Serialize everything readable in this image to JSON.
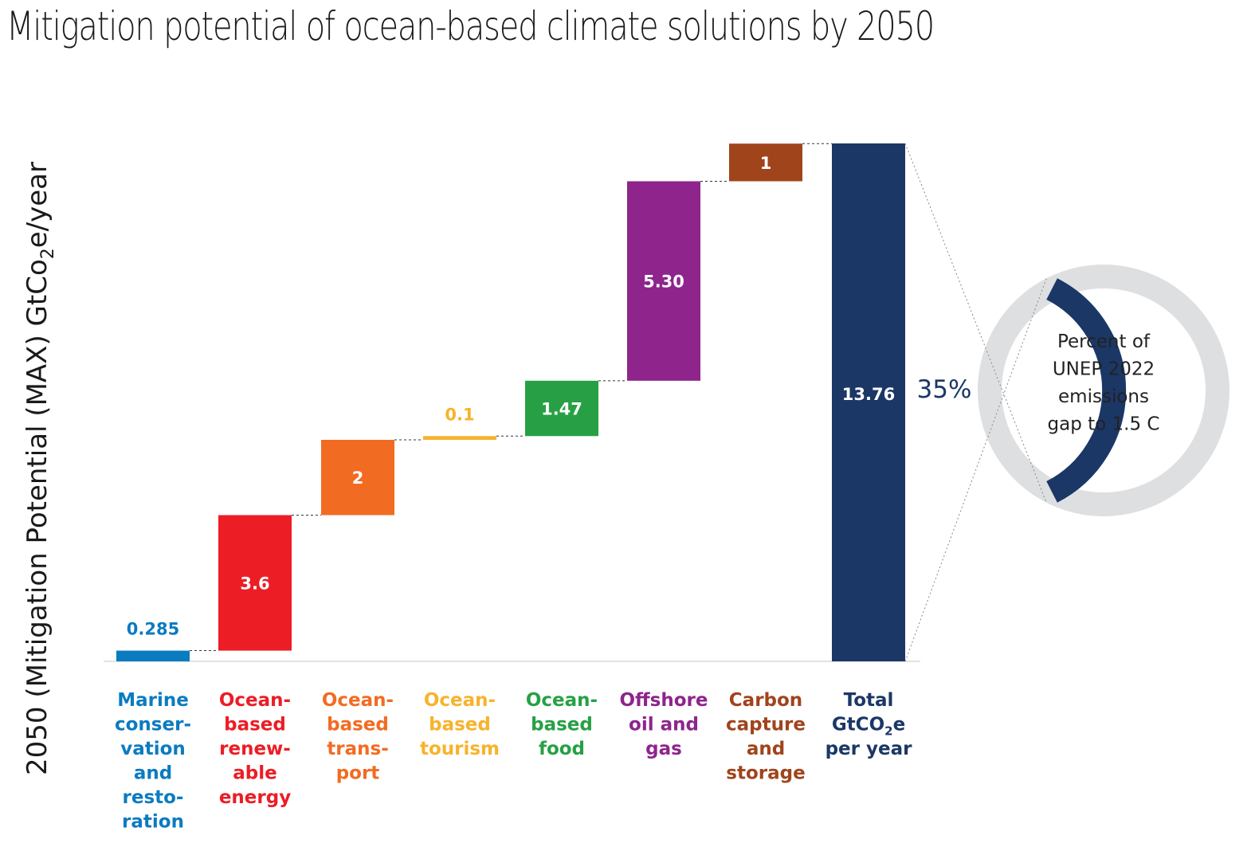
{
  "title": "Mitigation potential of ocean-based climate solutions by 2050",
  "colors": {
    "marine": "#0b7bc1",
    "renewable": "#ec1d25",
    "transport": "#f26b22",
    "tourism": "#f7b32b",
    "food": "#27a045",
    "oilgas": "#8e248c",
    "ccs": "#a0441c",
    "total": "#1b3766",
    "donut_track": "#dedfe1"
  },
  "chart_data": {
    "type": "waterfall",
    "title": "Mitigation potential of ocean-based climate solutions by 2050",
    "ylabel": "2050 (Mitigation Potential (MAX) GtCo2e/year",
    "ylim": [
      0,
      13.76
    ],
    "grid": false,
    "categories": [
      {
        "lines": [
          "Marine",
          "conser-",
          "vation",
          "and",
          "resto-",
          "ration"
        ],
        "value": 0.285,
        "label": "0.285",
        "color_key": "marine"
      },
      {
        "lines": [
          "Ocean-",
          "based",
          "renew-",
          "able",
          "energy"
        ],
        "value": 3.6,
        "label": "3.6",
        "color_key": "renewable"
      },
      {
        "lines": [
          "Ocean-",
          "based",
          "trans-",
          "port"
        ],
        "value": 2,
        "label": "2",
        "color_key": "transport"
      },
      {
        "lines": [
          "Ocean-",
          "based",
          "tourism"
        ],
        "value": 0.1,
        "label": "0.1",
        "color_key": "tourism"
      },
      {
        "lines": [
          "Ocean-",
          "based",
          "food"
        ],
        "value": 1.47,
        "label": "1.47",
        "color_key": "food"
      },
      {
        "lines": [
          "Offshore",
          "oil and",
          "gas"
        ],
        "value": 5.3,
        "label": "5.30",
        "color_key": "oilgas"
      },
      {
        "lines": [
          "Carbon",
          "capture",
          "and",
          "storage"
        ],
        "value": 1,
        "label": "1",
        "color_key": "ccs"
      }
    ],
    "total": {
      "lines": [
        "Total",
        "GtCO2e",
        "per year"
      ],
      "value": 13.76,
      "label": "13.76",
      "color_key": "total"
    },
    "gap_share": {
      "percent": 35,
      "label": "35%",
      "text_lines": [
        "Percent of",
        "UNEP 2022",
        "emissions",
        "gap to 1.5 C"
      ]
    }
  }
}
